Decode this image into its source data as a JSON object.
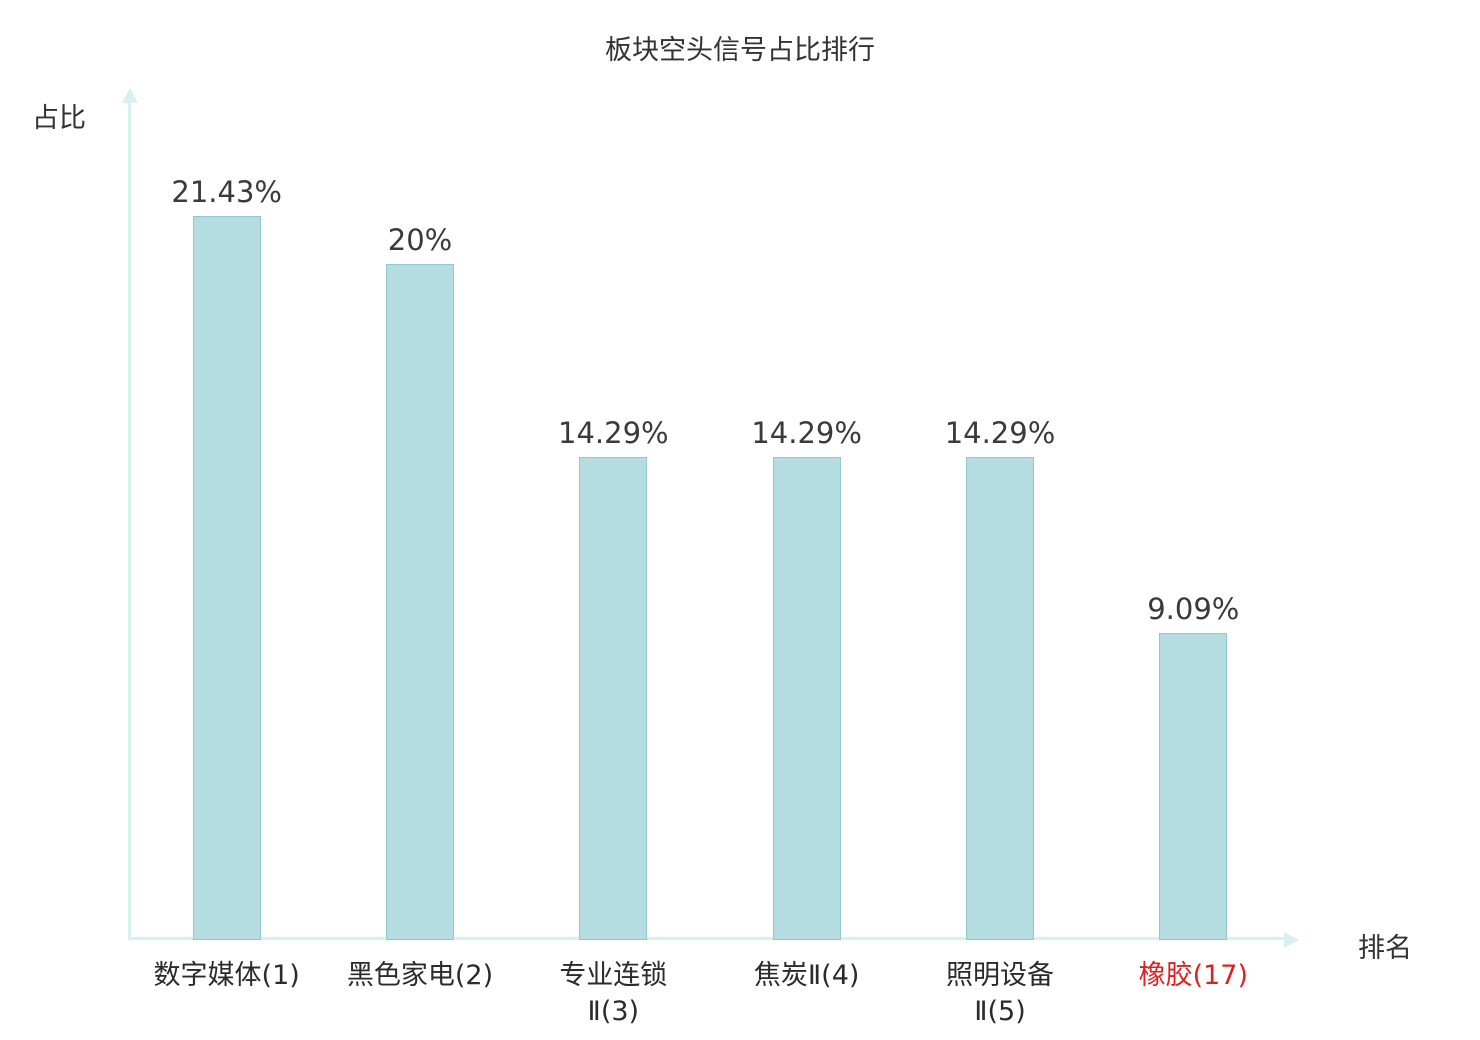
{
  "title": "板块空头信号占比排行",
  "ylabel": "占比",
  "xlabel": "排名",
  "chart_data": {
    "type": "bar",
    "categories": [
      "数字媒体(1)",
      "黑色家电(2)",
      "专业连锁Ⅱ(3)",
      "焦炭Ⅱ(4)",
      "照明设备Ⅱ(5)",
      "橡胶(17)"
    ],
    "category_lines": [
      [
        "数字媒体(1)"
      ],
      [
        "黑色家电(2)"
      ],
      [
        "专业连锁",
        "Ⅱ(3)"
      ],
      [
        "焦炭Ⅱ(4)"
      ],
      [
        "照明设备",
        "Ⅱ(5)"
      ],
      [
        "橡胶(17)"
      ]
    ],
    "values": [
      21.43,
      20,
      14.29,
      14.29,
      14.29,
      9.09
    ],
    "value_labels": [
      "21.43%",
      "20%",
      "14.29%",
      "14.29%",
      "14.29%",
      "9.09%"
    ],
    "highlight_index": 5,
    "highlight_text_color": "#e02020",
    "bar_color": "#b5dce1",
    "bar_border_color": "#8ec9cf",
    "axis_color": "#d9f0f0",
    "text_color": "#333333",
    "xlabel_position": "right",
    "ylim": [
      0,
      25
    ],
    "grid": false,
    "legend": false
  }
}
